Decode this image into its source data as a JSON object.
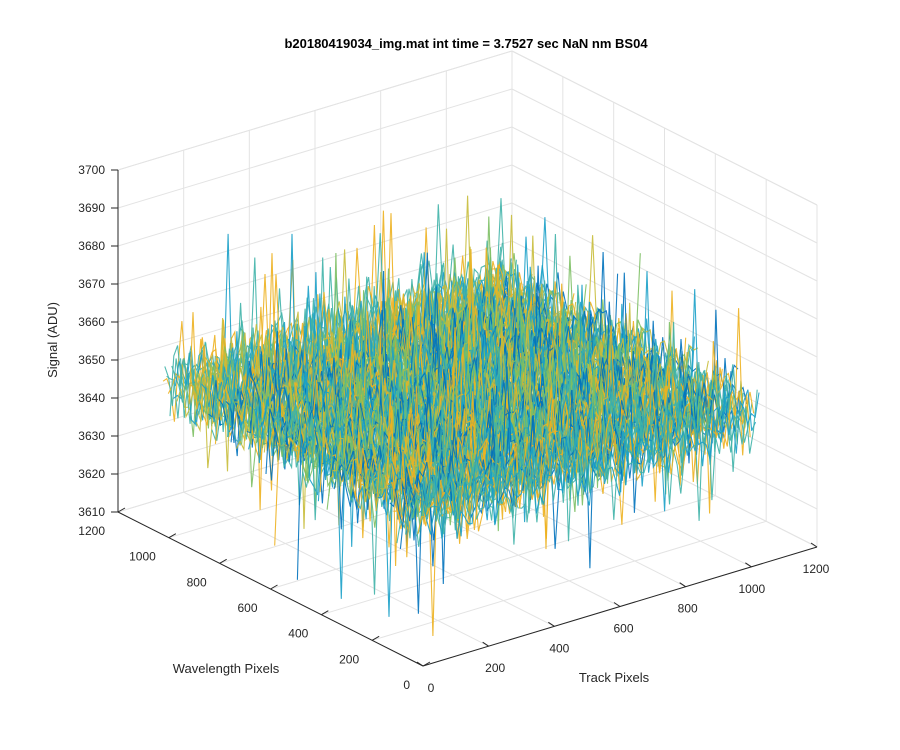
{
  "chart_data": {
    "type": "surface",
    "title": "b20180419034_img.mat int time = 3.7527 sec  NaN nm BS04",
    "xlabel": "Track Pixels",
    "ylabel": "Wavelength Pixels",
    "zlabel": "Signal (ADU)",
    "x_ticks": [
      "0",
      "200",
      "400",
      "600",
      "800",
      "1000",
      "1200"
    ],
    "y_ticks": [
      "0",
      "200",
      "400",
      "600",
      "800",
      "1000",
      "1200"
    ],
    "z_ticks": [
      "3610",
      "3620",
      "3630",
      "3640",
      "3650",
      "3660",
      "3670",
      "3680",
      "3690",
      "3700"
    ],
    "xlim": [
      0,
      1200
    ],
    "ylim": [
      0,
      1200
    ],
    "zlim": [
      3610,
      3700
    ],
    "data_extent": {
      "x": [
        1,
        1024
      ],
      "y": [
        1,
        1024
      ]
    },
    "signal_mean": 3650,
    "signal_noise_range": [
      3615,
      3690
    ],
    "grid": true,
    "box": true,
    "colormap": [
      "#0072bd",
      "#1aa0c8",
      "#3fb2a8",
      "#7cbf63",
      "#c8bc3a",
      "#edb120"
    ]
  }
}
